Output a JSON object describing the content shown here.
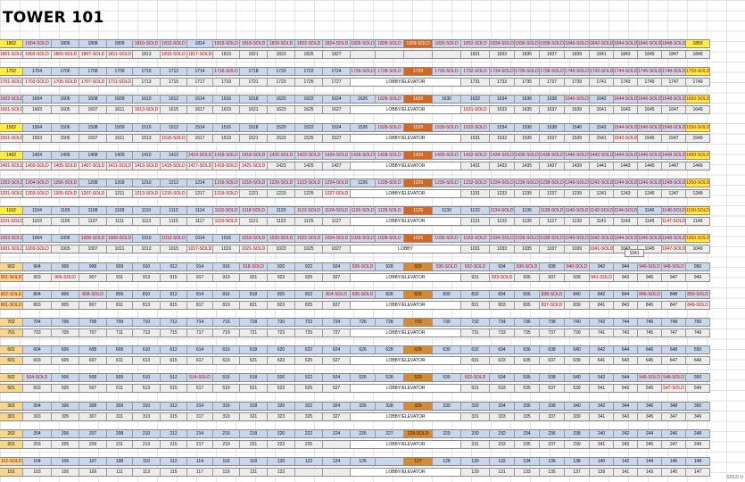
{
  "sheet": {
    "title": "TOWER 101",
    "footnote": "SOLD U",
    "extra_cell": "1041"
  },
  "floors": [
    {
      "top": [
        "1802",
        "1804-SOLD",
        "1806",
        "1808",
        "1809",
        "1810-SOLD",
        "1812-SOLD",
        "1814",
        "1816-SOLD",
        "1818-SOLD",
        "1820-SOLD",
        "1822-SOLD",
        "1824-SOLD",
        "1826-SOLD",
        "1828-SOLD",
        "1829-SOLD",
        "1830-SOLD",
        "1832-SOLD",
        "1834-SOLD",
        "1836-SOLD",
        "1838-SOLD",
        "1840-SOLD",
        "1842-SOLD",
        "1844-SOLD",
        "1846-SOLD",
        "1848-SOLD",
        "1850"
      ],
      "bot": [
        "1801-SOLD",
        "1803-SOLD",
        "1805-SOLD",
        "1807-SOLD",
        "1811-SOLD",
        "1813",
        "1815-SOLD",
        "1817-SOLD",
        "1819",
        "1821",
        "1823",
        "1825",
        "1827",
        "",
        "",
        "",
        "",
        "1831",
        "1833",
        "1835",
        "1837",
        "1839",
        "1841",
        "1843",
        "1845",
        "1847",
        "1849"
      ]
    },
    {
      "top": [
        "1702",
        "1704",
        "1706",
        "1708",
        "1709",
        "1710",
        "1712",
        "1714",
        "1716-SOLD",
        "1718",
        "1720",
        "1722",
        "1724",
        "1726-SOLD",
        "1728-SOLD",
        "1729",
        "1730-SOLD",
        "1732-SOLD",
        "1734-SOLD",
        "1736-SOLD",
        "1738-SOLD",
        "1740-SOLD",
        "1742-SOLD",
        "1744-SOLD",
        "1746-SOLD",
        "1748-SOLD",
        "1750-SOLD"
      ],
      "bot": [
        "1701-SOLD",
        "1703-SOLD",
        "1705-SOLD",
        "1707-SOLD",
        "1711-SOLD",
        "1713",
        "1715",
        "1717",
        "1719",
        "1721",
        "1723",
        "1725",
        "1727",
        "LOBBY/ELEVATOR",
        "",
        "",
        "",
        "1731",
        "1733",
        "1735",
        "1737",
        "1739",
        "1741",
        "1743",
        "1745",
        "1747",
        "1749"
      ]
    },
    {
      "top": [
        "1602-SOLD",
        "1604",
        "1606",
        "1608",
        "1609",
        "1610",
        "1612",
        "1614",
        "1616",
        "1618",
        "1620",
        "1622",
        "1624",
        "1626",
        "1628-SOLD",
        "1629",
        "1630",
        "1632",
        "1634",
        "1636",
        "1638",
        "1640-SOLD",
        "1642",
        "1644-SOLD",
        "1646-SOLD",
        "1648-SOLD",
        "1650-SOLD"
      ],
      "bot": [
        "1601-SOLD",
        "1603",
        "1605",
        "1607",
        "1611",
        "1613-SOLD",
        "1615",
        "1617",
        "1619",
        "1621",
        "1623",
        "1625",
        "1627",
        "LOBBY/ELEVATOR",
        "",
        "",
        "",
        "1631-SOLD",
        "1633",
        "1635",
        "1637",
        "1639",
        "1641",
        "1643",
        "1645",
        "1647",
        "1649"
      ]
    },
    {
      "top": [
        "1502",
        "1504",
        "1506",
        "1508",
        "1509",
        "1510",
        "1512",
        "1514",
        "1516",
        "1518",
        "1520",
        "1522",
        "1524",
        "1526",
        "1528-SOLD",
        "1529",
        "1530-SOLD",
        "1532-SOLD",
        "1534",
        "1536",
        "1538",
        "1540",
        "1542",
        "1544-SOLD",
        "1546-SOLD",
        "1548-SOLD",
        "1550-SOLD"
      ],
      "bot": [
        "1501-SOLD",
        "1503",
        "1505",
        "1507",
        "1511",
        "1513",
        "1515-SOLD",
        "1517",
        "1519",
        "1521",
        "1523",
        "1525",
        "1527",
        "LOBBY/ELEVATOR",
        "",
        "",
        "",
        "1531",
        "1533",
        "1535",
        "1537",
        "1539",
        "1541",
        "1543-SOLD",
        "1545",
        "1547",
        "1549"
      ]
    },
    {
      "top": [
        "1402",
        "1404",
        "1406",
        "1408",
        "1409",
        "1410",
        "1412",
        "1414-SOLD",
        "1416-SOLD",
        "1418-SOLD",
        "1420-SOLD",
        "1422-SOLD",
        "1424-SOLD",
        "1426-SOLD",
        "1428-SOLD",
        "1429",
        "1430-SOLD",
        "1432-SOLD",
        "1434-SOLD",
        "1436-SOLD",
        "1438-SOLD",
        "1440-SOLD",
        "1442-SOLD",
        "1444-SOLD",
        "1446-SOLD",
        "1448-SOLD",
        "1450-SOLD"
      ],
      "bot": [
        "1401-SOLD",
        "1403-SOLD",
        "1405-SOLD",
        "1407-SOLD",
        "1411-SOLD",
        "1413-SOLD",
        "1415-SOLD",
        "1417-SOLD",
        "1419-SOLD",
        "1421-SOLD",
        "1423",
        "1425",
        "1427",
        "LOBBY/ELEVATOR",
        "",
        "",
        "",
        "1431",
        "1433",
        "1435",
        "1437",
        "1439",
        "1441",
        "1443",
        "1445",
        "1447",
        "1449"
      ]
    },
    {
      "top": [
        "1202-SOLD",
        "1204-SOLD",
        "1206-SOLD",
        "1208",
        "1209",
        "1210",
        "1212",
        "1214",
        "1216-SOLD",
        "1218-SOLD",
        "1220-SOLD",
        "1222-SOLD",
        "1224-SOLD",
        "1226",
        "1228-SOLD",
        "1229",
        "1230-SOLD",
        "1232-SOLD",
        "1234-SOLD",
        "1236-SOLD",
        "1238-SOLD",
        "1240-SOLD",
        "1242-SOLD",
        "1244-SOLD",
        "1246-SOLD",
        "1248-SOLD",
        "1250-SOLD"
      ],
      "bot": [
        "1201-SOLD",
        "1203-SOLD",
        "1205-SOLD",
        "1207-SOLD",
        "1211",
        "1213-SOLD",
        "1215-SOLD",
        "1217",
        "1219-SOLD",
        "1221",
        "1223",
        "1225",
        "1227-SOLD",
        "LOBBY/ELEVATOR",
        "",
        "",
        "",
        "1231",
        "1233",
        "1235",
        "1237",
        "1239",
        "1241",
        "1243",
        "1245",
        "1247",
        "1249"
      ]
    },
    {
      "top": [
        "1102",
        "1104",
        "1106",
        "1108",
        "1109",
        "1110",
        "1112",
        "1114",
        "1116-SOLD",
        "1118-SOLD",
        "1120",
        "1122-SOLD",
        "1124-SOLD",
        "1126-SOLD",
        "1128-SOLD",
        "1129",
        "1130",
        "1132",
        "1134-SOLD",
        "1136",
        "1138-SOLD",
        "1140-SOLD",
        "1142-SOLD",
        "1144-SOLD",
        "1146",
        "1148-SOLD",
        "1150-SOLD"
      ],
      "bot": [
        "1101-SOLD",
        "1103",
        "1105",
        "1107",
        "1111",
        "1113",
        "1115",
        "1117",
        "1119-SOLD",
        "1121",
        "1123",
        "1125",
        "1127",
        "LOBBY/ELEVATOR",
        "",
        "",
        "",
        "1131",
        "1133",
        "1135",
        "1137",
        "1139",
        "1141",
        "1143",
        "1145",
        "1147-SOLD",
        "1149"
      ]
    },
    {
      "top": [
        "1002-SOLD",
        "1004",
        "1006",
        "1008-SOLD",
        "1009-SOLD",
        "1010",
        "1012-SOLD",
        "1014",
        "1016",
        "1018-SOLD",
        "1020-SOLD",
        "1022-SOLD",
        "1024-SOLD",
        "1026-SOLD",
        "1028-SOLD",
        "1029",
        "1030-SOLD",
        "1032-SOLD",
        "1034-SOLD",
        "1036-SOLD",
        "1038-SOLD",
        "1040-SOLD",
        "1042-SOLD",
        "1044-SOLD",
        "1046-SOLD",
        "1048-SOLD",
        "1050-SOLD"
      ],
      "bot": [
        "1001-SOLD",
        "1003-SOLD",
        "1005",
        "1007",
        "1011",
        "1013",
        "1015",
        "1017-SOLD",
        "1019",
        "1021-SOLD",
        "1023",
        "1025",
        "1027",
        "LOBBY",
        "",
        "",
        "",
        "1031",
        "1033",
        "1035",
        "1037",
        "1039",
        "1041-SOLD",
        "1043",
        "1045",
        "1047-SOLD",
        "1049"
      ]
    },
    {
      "top": [
        "902",
        "904",
        "906",
        "908",
        "909",
        "910",
        "912",
        "914",
        "916",
        "918-SOLD",
        "920",
        "922",
        "924",
        "926-SOLD",
        "928",
        "929",
        "930-SOLD",
        "932-SOLD",
        "934",
        "936-SOLD",
        "938",
        "940-SOLD",
        "942",
        "944",
        "946-SOLD",
        "948-SOLD",
        "950"
      ],
      "bot": [
        "901-SOLD",
        "903",
        "905-SOLD",
        "907",
        "911",
        "913",
        "915",
        "917",
        "919",
        "921",
        "923",
        "925",
        "927",
        "LOBBY/ELEVATOR",
        "",
        "",
        "",
        "931",
        "933-SOLD",
        "935",
        "937",
        "939",
        "941-SOLD",
        "943",
        "945",
        "947",
        "949"
      ]
    },
    {
      "top": [
        "802-SOLD",
        "804",
        "806",
        "808-SOLD",
        "809",
        "810",
        "812",
        "814",
        "816",
        "818",
        "820",
        "822",
        "824-SOLD",
        "826-SOLD",
        "828",
        "829",
        "830",
        "832",
        "834",
        "836",
        "838-SOLD",
        "840",
        "842",
        "844",
        "846-SOLD",
        "848",
        "850-SOLD"
      ],
      "bot": [
        "801-SOLD",
        "803",
        "805",
        "807",
        "811",
        "813",
        "815",
        "817",
        "819",
        "821",
        "823",
        "825",
        "827",
        "LOBBY/ELEVATOR",
        "",
        "",
        "",
        "831",
        "833",
        "835",
        "837-SOLD",
        "839",
        "841",
        "843",
        "845",
        "847",
        "849-SOLD"
      ]
    },
    {
      "top": [
        "702",
        "704",
        "706",
        "708",
        "709",
        "710",
        "712",
        "714",
        "716",
        "718",
        "720",
        "722",
        "724",
        "726",
        "728",
        "729",
        "730",
        "732",
        "734",
        "736",
        "738",
        "740",
        "742",
        "744",
        "746",
        "748",
        "750"
      ],
      "bot": [
        "701",
        "703",
        "705",
        "707",
        "711",
        "713",
        "715",
        "717",
        "719",
        "721",
        "723",
        "725",
        "727",
        "LOBBY/ELEVATOR",
        "",
        "",
        "",
        "731",
        "733",
        "735",
        "737",
        "739",
        "741",
        "743",
        "745",
        "747",
        "749"
      ]
    },
    {
      "top": [
        "602",
        "604",
        "606",
        "608",
        "609",
        "610",
        "612",
        "614",
        "616",
        "618",
        "620",
        "622",
        "624",
        "626",
        "628",
        "629",
        "630",
        "632",
        "634",
        "636",
        "638",
        "640",
        "642",
        "644",
        "646",
        "648",
        "650"
      ],
      "bot": [
        "601",
        "603",
        "605",
        "607",
        "611",
        "613",
        "615",
        "617",
        "619",
        "621",
        "623",
        "625",
        "627",
        "LOBBY/ELEVATOR",
        "",
        "",
        "",
        "631",
        "633",
        "635",
        "637",
        "639",
        "641",
        "643",
        "645",
        "647",
        "649"
      ]
    },
    {
      "top": [
        "502",
        "504-SOLD",
        "506",
        "508",
        "509",
        "510",
        "512",
        "514-SOLD",
        "516",
        "518",
        "520",
        "522",
        "524",
        "526",
        "528",
        "529",
        "530",
        "532-SOLD",
        "534",
        "536",
        "538",
        "540",
        "542",
        "544",
        "546-SOLD",
        "548-SOLD",
        "550"
      ],
      "bot": [
        "501",
        "503",
        "505",
        "507",
        "511",
        "513",
        "515",
        "517",
        "519",
        "521",
        "523",
        "525",
        "527",
        "LOBBY/ELEVATOR",
        "",
        "",
        "",
        "531",
        "533",
        "535",
        "537",
        "539",
        "541",
        "543",
        "545",
        "547-SOLD",
        "549"
      ]
    },
    {
      "top": [
        "302",
        "304",
        "306",
        "308",
        "309",
        "310",
        "312",
        "314",
        "316",
        "318",
        "320",
        "322",
        "324",
        "326",
        "328",
        "329",
        "330",
        "332",
        "334",
        "336",
        "338",
        "340",
        "342",
        "344",
        "346",
        "348",
        "350"
      ],
      "bot": [
        "301",
        "303",
        "305",
        "307",
        "311",
        "313",
        "315",
        "317",
        "319",
        "321",
        "323",
        "325",
        "327",
        "LOBBY/ELEVATOR",
        "",
        "",
        "",
        "331",
        "333",
        "335",
        "337",
        "339",
        "341",
        "343",
        "345",
        "347",
        "349"
      ]
    },
    {
      "top": [
        "202",
        "204",
        "206",
        "207",
        "208",
        "210",
        "212",
        "214",
        "216",
        "218",
        "220",
        "222",
        "224",
        "226",
        "227",
        "228-SOLD",
        "229",
        "230",
        "232",
        "234",
        "236",
        "238",
        "240",
        "242",
        "244",
        "246",
        "248"
      ],
      "bot": [
        "201",
        "203",
        "205",
        "209",
        "211",
        "213",
        "215",
        "217",
        "219",
        "221",
        "223",
        "225",
        "",
        "LOBBY/ELEVATOR",
        "",
        "",
        "",
        "231",
        "233",
        "235",
        "237",
        "239",
        "241",
        "243",
        "245",
        "247",
        "249"
      ]
    },
    {
      "top": [
        "102-SOLD",
        "104",
        "106",
        "107",
        "108",
        "110",
        "112",
        "114",
        "116",
        "118",
        "120",
        "122",
        "124",
        "126",
        "",
        "127",
        "128",
        "130",
        "132",
        "134",
        "136",
        "138",
        "140",
        "142",
        "144",
        "146",
        "148"
      ],
      "bot": [
        "101",
        "103",
        "105",
        "109",
        "111",
        "113",
        "115",
        "117",
        "119",
        "121",
        "123",
        "",
        "",
        "LOBBY/ELEVATOR",
        "",
        "",
        "",
        "129",
        "131",
        "133",
        "135",
        "137",
        "139",
        "141",
        "143",
        "145",
        "147"
      ]
    }
  ],
  "colors": {
    "header_row_bg": "#c8d6ee",
    "sold_text": "#c00000",
    "elevator_orange": "#d9661e",
    "highlight_yellow": "#ffed3a",
    "highlight_peach": "#f8d68a"
  }
}
